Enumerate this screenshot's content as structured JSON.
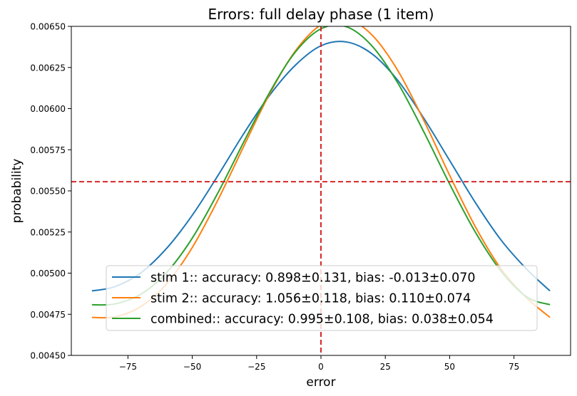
{
  "chart_data": {
    "type": "line",
    "title": "Errors: full delay phase (1 item)",
    "xlabel": "error",
    "ylabel": "probability",
    "xlim": [
      -97,
      97
    ],
    "ylim": [
      0.0045,
      0.0065
    ],
    "x_ticks": [
      -75,
      -50,
      -25,
      0,
      25,
      50,
      75
    ],
    "x_tick_labels": [
      "−75",
      "−50",
      "−25",
      "0",
      "25",
      "50",
      "75"
    ],
    "y_ticks": [
      0.0045,
      0.00475,
      0.005,
      0.00525,
      0.0055,
      0.00575,
      0.006,
      0.00625,
      0.0065
    ],
    "y_tick_labels": [
      "0.00450",
      "0.00475",
      "0.00500",
      "0.00525",
      "0.00550",
      "0.00575",
      "0.00600",
      "0.00625",
      "0.00650"
    ],
    "grid": false,
    "legend_position": "lower center",
    "reference_lines": [
      {
        "orientation": "vertical",
        "value": 0,
        "color": "#d62728",
        "style": "dashed"
      },
      {
        "orientation": "horizontal",
        "value": 0.005556,
        "color": "#d62728",
        "style": "dashed"
      }
    ],
    "series": [
      {
        "name": "stim 1:: accuracy: 0.898±0.131, bias: -0.013±0.070",
        "color": "#1f77b4",
        "x": [
          -89,
          -80,
          -70,
          -60,
          -50,
          -40,
          -30,
          -20,
          -10,
          0,
          10,
          20,
          30,
          40,
          50,
          60,
          70,
          80,
          89
        ],
        "y": [
          0.004892,
          0.004918,
          0.005002,
          0.00515,
          0.005352,
          0.005594,
          0.005848,
          0.00608,
          0.006263,
          0.006382,
          0.006405,
          0.006331,
          0.006169,
          0.005941,
          0.005685,
          0.005429,
          0.005201,
          0.005023,
          0.004892
        ]
      },
      {
        "name": "stim 2:: accuracy: 1.056±0.118, bias: 0.110±0.074",
        "color": "#ff7f0e",
        "x": [
          -89,
          -80,
          -70,
          -60,
          -50,
          -40,
          -30,
          -20,
          -10,
          0,
          10,
          20,
          30,
          40,
          50,
          60,
          70,
          80,
          89
        ],
        "y": [
          0.004731,
          0.004734,
          0.004797,
          0.004935,
          0.005156,
          0.005446,
          0.005771,
          0.006088,
          0.006349,
          0.006509,
          0.006544,
          0.006445,
          0.006228,
          0.005927,
          0.005595,
          0.005282,
          0.005025,
          0.004849,
          0.004731
        ]
      },
      {
        "name": "combined:: accuracy: 0.995±0.108, bias: 0.038±0.054",
        "color": "#2ca02c",
        "x": [
          -89,
          -80,
          -70,
          -60,
          -50,
          -40,
          -30,
          -20,
          -10,
          0,
          10,
          20,
          30,
          40,
          50,
          60,
          70,
          80,
          89
        ],
        "y": [
          0.004808,
          0.004813,
          0.004872,
          0.005003,
          0.005213,
          0.005489,
          0.005797,
          0.006097,
          0.006343,
          0.006485,
          0.006497,
          0.006378,
          0.006152,
          0.005858,
          0.005542,
          0.005249,
          0.005012,
          0.004855,
          0.004808
        ]
      }
    ]
  }
}
